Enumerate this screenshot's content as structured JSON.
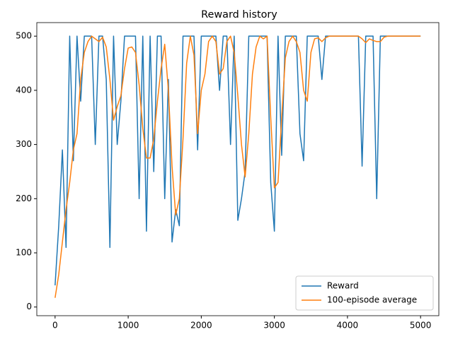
{
  "chart_data": {
    "type": "line",
    "title": "Reward history",
    "x": [
      0,
      50,
      100,
      150,
      200,
      250,
      300,
      350,
      400,
      450,
      500,
      550,
      600,
      650,
      700,
      750,
      800,
      850,
      900,
      950,
      1000,
      1050,
      1100,
      1150,
      1200,
      1250,
      1300,
      1350,
      1400,
      1450,
      1500,
      1550,
      1600,
      1650,
      1700,
      1750,
      1800,
      1850,
      1900,
      1950,
      2000,
      2050,
      2100,
      2150,
      2200,
      2250,
      2300,
      2350,
      2400,
      2450,
      2500,
      2550,
      2600,
      2650,
      2700,
      2750,
      2800,
      2850,
      2900,
      2950,
      3000,
      3050,
      3100,
      3150,
      3200,
      3250,
      3300,
      3350,
      3400,
      3450,
      3500,
      3550,
      3600,
      3650,
      3700,
      3750,
      3800,
      3850,
      3900,
      3950,
      4000,
      4050,
      4100,
      4150,
      4200,
      4250,
      4300,
      4350,
      4400,
      4450,
      4500,
      4550,
      4600,
      4650,
      4700,
      4750,
      4800,
      4850,
      4900,
      4950,
      5000
    ],
    "series": [
      {
        "name": "Reward",
        "color": "#1f77b4",
        "values": [
          40,
          150,
          290,
          110,
          500,
          270,
          500,
          380,
          500,
          500,
          500,
          300,
          500,
          500,
          420,
          110,
          500,
          300,
          380,
          500,
          500,
          500,
          500,
          200,
          500,
          140,
          500,
          250,
          500,
          500,
          200,
          420,
          120,
          180,
          150,
          500,
          500,
          500,
          500,
          290,
          500,
          500,
          500,
          500,
          500,
          400,
          500,
          500,
          300,
          500,
          160,
          200,
          250,
          500,
          500,
          500,
          500,
          500,
          500,
          230,
          140,
          500,
          280,
          500,
          500,
          500,
          500,
          320,
          270,
          500,
          500,
          500,
          500,
          420,
          500,
          500,
          500,
          500,
          500,
          500,
          500,
          500,
          500,
          500,
          260,
          500,
          500,
          500,
          200,
          500,
          500,
          500,
          500,
          500,
          500,
          500,
          500,
          500,
          500,
          500,
          500
        ]
      },
      {
        "name": "100-episode average",
        "color": "#ff7f0e",
        "values": [
          17,
          60,
          120,
          180,
          230,
          290,
          320,
          420,
          470,
          490,
          500,
          495,
          490,
          498,
          480,
          420,
          345,
          370,
          390,
          440,
          478,
          480,
          470,
          410,
          330,
          275,
          275,
          310,
          380,
          440,
          485,
          400,
          260,
          170,
          200,
          310,
          450,
          500,
          465,
          320,
          400,
          430,
          490,
          500,
          490,
          430,
          440,
          490,
          500,
          470,
          390,
          300,
          240,
          320,
          430,
          480,
          500,
          495,
          500,
          350,
          220,
          230,
          350,
          460,
          490,
          500,
          490,
          470,
          400,
          380,
          470,
          495,
          497,
          490,
          497,
          500,
          500,
          500,
          500,
          500,
          500,
          500,
          500,
          500,
          495,
          488,
          495,
          492,
          490,
          490,
          498,
          500,
          500,
          500,
          500,
          500,
          500,
          500,
          500,
          500,
          500
        ]
      }
    ],
    "xlim": [
      -250,
      5250
    ],
    "ylim": [
      -16,
      525
    ],
    "xticks": [
      0,
      1000,
      2000,
      3000,
      4000,
      5000
    ],
    "yticks": [
      0,
      100,
      200,
      300,
      400,
      500
    ],
    "legend": "lower right"
  }
}
